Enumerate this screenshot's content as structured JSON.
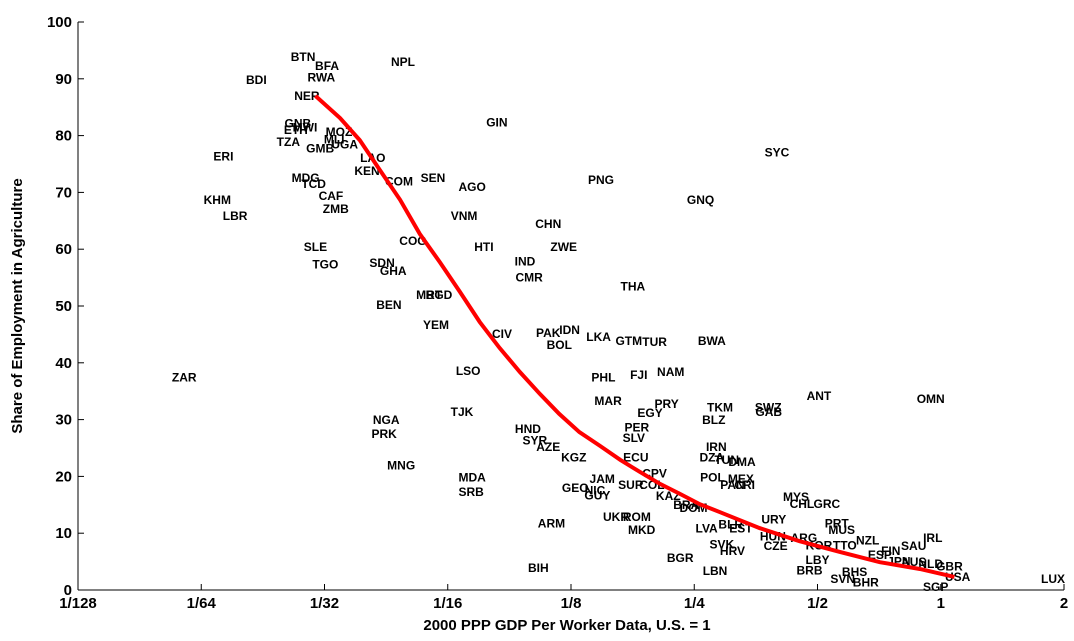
{
  "chart_data": {
    "type": "scatter",
    "xlabel": "2000 PPP GDP Per Worker Data, U.S. = 1",
    "ylabel": "Share of Employment in Agriculture",
    "xscale": "log",
    "xlim": [
      0.0078125,
      2
    ],
    "ylim": [
      0,
      100
    ],
    "xticks": [
      {
        "value": 0.0078125,
        "label": "1/128"
      },
      {
        "value": 0.015625,
        "label": "1/64"
      },
      {
        "value": 0.03125,
        "label": "1/32"
      },
      {
        "value": 0.0625,
        "label": "1/16"
      },
      {
        "value": 0.125,
        "label": "1/8"
      },
      {
        "value": 0.25,
        "label": "1/4"
      },
      {
        "value": 0.5,
        "label": "1/2"
      },
      1,
      2
    ],
    "yticks": [
      0,
      10,
      20,
      30,
      40,
      50,
      60,
      70,
      80,
      90,
      100
    ],
    "color": "#000000",
    "labels": [
      "BTN",
      "BFA",
      "RWA",
      "NPL",
      "BDI",
      "NER",
      "GIN",
      "SYC",
      "ERI",
      "GNB",
      "MWI",
      "ETH",
      "TZA",
      "GMB",
      "MOZ",
      "MLI",
      "UGA",
      "LAO",
      "KEN",
      "COM",
      "SEN",
      "AGO",
      "PNG",
      "GNQ",
      "MDG",
      "TCD",
      "CAF",
      "KHM",
      "LBR",
      "ZMB",
      "VNM",
      "CHN",
      "COG",
      "HTI",
      "ZWE",
      "SLE",
      "IND",
      "SDN",
      "TGO",
      "GHA",
      "CMR",
      "THA",
      "MRT",
      "BGD",
      "BEN",
      "YEM",
      "CIV",
      "PAK",
      "IDN",
      "BOL",
      "LKA",
      "GTM",
      "TUR",
      "BWA",
      "ZAR",
      "LSO",
      "PHL",
      "FJI",
      "NAM",
      "ANT",
      "OMN",
      "MAR",
      "PRY",
      "EGY",
      "TKM",
      "SWZ",
      "GAB",
      "BLZ",
      "NGA",
      "TJK",
      "PRK",
      "PER",
      "HND",
      "SYR",
      "SLV",
      "AZE",
      "KGZ",
      "IRN",
      "ECU",
      "DZA",
      "TUN",
      "DMA",
      "MNG",
      "MDA",
      "CPV",
      "JAM",
      "POL",
      "MEX",
      "SUR",
      "COL",
      "PAN",
      "CRI",
      "GEO",
      "NIC",
      "SRB",
      "GUY",
      "KAZ",
      "BRA",
      "DOM",
      "MYS",
      "CHL",
      "GRC",
      "URY",
      "ARM",
      "UKR",
      "ROM",
      "MKD",
      "BLR",
      "LVA",
      "EST",
      "HUN",
      "ARG",
      "PRT",
      "MUS",
      "KOR",
      "TTO",
      "NZL",
      "IRL",
      "SAU",
      "CZE",
      "HRV",
      "SVK",
      "LBN",
      "BGR",
      "BIH",
      "LBY",
      "BRB",
      "BHS",
      "SVN",
      "BHR",
      "SGP",
      "USA",
      "LUX",
      "JPN",
      "AUS",
      "NLD",
      "GBR",
      "FIN",
      "ESP"
    ],
    "x": [
      0.0277,
      0.0317,
      0.0307,
      0.0486,
      0.0213,
      0.0283,
      0.0824,
      0.398,
      0.0177,
      0.0269,
      0.028,
      0.0266,
      0.0255,
      0.0305,
      0.0339,
      0.033,
      0.035,
      0.041,
      0.0397,
      0.0475,
      0.0575,
      0.0717,
      0.148,
      0.259,
      0.0281,
      0.0294,
      0.0324,
      0.0171,
      0.0189,
      0.0333,
      0.0685,
      0.11,
      0.0514,
      0.0766,
      0.12,
      0.0297,
      0.0965,
      0.0432,
      0.0314,
      0.046,
      0.0988,
      0.177,
      0.0563,
      0.0595,
      0.0449,
      0.0585,
      0.0848,
      0.11,
      0.124,
      0.117,
      0.146,
      0.173,
      0.2,
      0.276,
      0.0142,
      0.0701,
      0.15,
      0.183,
      0.219,
      0.504,
      0.945,
      0.154,
      0.214,
      0.195,
      0.289,
      0.379,
      0.38,
      0.279,
      0.0442,
      0.0677,
      0.0437,
      0.181,
      0.0981,
      0.102,
      0.178,
      0.11,
      0.127,
      0.283,
      0.18,
      0.276,
      0.3,
      0.327,
      0.0481,
      0.0717,
      0.2,
      0.149,
      0.277,
      0.325,
      0.175,
      0.197,
      0.31,
      0.332,
      0.128,
      0.143,
      0.0713,
      0.145,
      0.216,
      0.239,
      0.249,
      0.443,
      0.458,
      0.527,
      0.391,
      0.112,
      0.161,
      0.181,
      0.186,
      0.307,
      0.268,
      0.325,
      0.389,
      0.463,
      0.557,
      0.573,
      0.504,
      0.583,
      0.663,
      0.956,
      0.859,
      0.395,
      0.31,
      0.292,
      0.281,
      0.231,
      0.104,
      0.5,
      0.478,
      0.616,
      0.576,
      0.656,
      0.972,
      1.1,
      1.88,
      0.79,
      0.859,
      0.945,
      1.05,
      0.755,
      0.71
    ],
    "values": [
      93.7,
      92.1,
      90.1,
      92.8,
      89.6,
      86.8,
      82.2,
      76.9,
      76.2,
      82,
      81.3,
      80.8,
      78.7,
      77.6,
      80.5,
      79.2,
      78.3,
      75.9,
      73.6,
      71.8,
      72.4,
      70.8,
      72,
      68.5,
      72.4,
      71.3,
      69.2,
      68.5,
      65.7,
      66.9,
      65.7,
      64.3,
      61.3,
      60.2,
      60.2,
      60.2,
      57.7,
      57.4,
      57.2,
      56,
      54.9,
      53.3,
      51.8,
      51.8,
      50,
      46.5,
      44.9,
      45.1,
      45.6,
      43,
      44.4,
      43.7,
      43.5,
      43.7,
      37.3,
      38.4,
      37.3,
      37.7,
      38.2,
      34,
      33.5,
      33.1,
      32.6,
      31,
      32,
      32,
      31.2,
      29.8,
      29.8,
      31.2,
      27.3,
      28.5,
      28.2,
      26.2,
      26.6,
      25,
      23.2,
      25,
      23.2,
      23.2,
      22.7,
      22.4,
      21.8,
      19.7,
      20.4,
      19.4,
      19.7,
      19.4,
      18.3,
      18.3,
      18.3,
      18.3,
      17.8,
      17.4,
      17.1,
      16.5,
      16.4,
      14.8,
      14.3,
      16.2,
      15,
      15,
      12.3,
      11.6,
      12.7,
      12.7,
      10.4,
      11.4,
      10.7,
      10.7,
      9.3,
      9,
      11.6,
      10.4,
      7.7,
      7.7,
      8.6,
      9,
      7.6,
      7.6,
      6.7,
      7.9,
      3.2,
      5.5,
      3.7,
      5.1,
      3.3,
      3,
      1.8,
      1.2,
      0.4,
      2.1,
      1.8,
      4.9,
      4.8,
      4.4,
      4,
      6.7,
      6
    ],
    "fit": {
      "color": "#ff0000",
      "x": [
        0.0297,
        0.0341,
        0.0381,
        0.0427,
        0.0478,
        0.0534,
        0.0598,
        0.0669,
        0.0748,
        0.0837,
        0.0937,
        0.105,
        0.117,
        0.131,
        0.147,
        0.165,
        0.184,
        0.206,
        0.231,
        0.258,
        0.289,
        0.361,
        0.452,
        0.567,
        0.71,
        0.889,
        1.08
      ],
      "values": [
        87,
        83.1,
        79.2,
        73.9,
        68.7,
        62.7,
        57.7,
        52.5,
        47.2,
        42.6,
        38.4,
        34.5,
        31,
        27.8,
        25.4,
        22.9,
        20.8,
        18.7,
        16.9,
        15.1,
        13.7,
        10.9,
        8.6,
        6.7,
        4.9,
        3.7,
        2.3
      ]
    }
  }
}
